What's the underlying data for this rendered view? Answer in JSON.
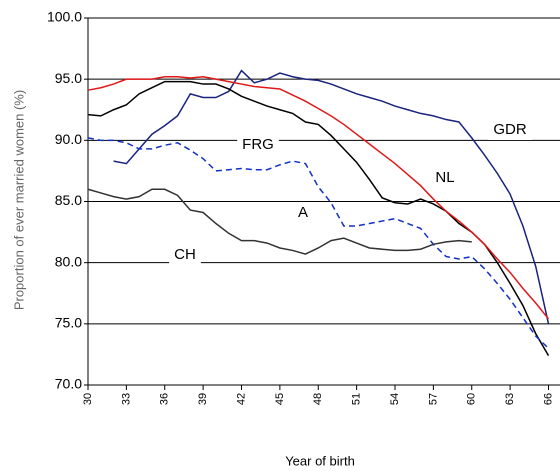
{
  "chart_data": {
    "type": "line",
    "x_label": "Year of birth",
    "y_label": "Proportion of ever married women (%)",
    "x": [
      30,
      31,
      32,
      33,
      34,
      35,
      36,
      37,
      38,
      39,
      40,
      41,
      42,
      43,
      44,
      45,
      46,
      47,
      48,
      49,
      50,
      51,
      52,
      53,
      54,
      55,
      56,
      57,
      58,
      59,
      60,
      61,
      62,
      63,
      64,
      65,
      66
    ],
    "xlim": [
      30,
      66.9
    ],
    "xticks": [
      30,
      33,
      36,
      39,
      42,
      45,
      48,
      51,
      54,
      57,
      60,
      63,
      66
    ],
    "ylim": [
      70,
      100
    ],
    "yticks": [
      {
        "value": 70,
        "label": "70.0"
      },
      {
        "value": 75,
        "label": "75.0"
      },
      {
        "value": 80,
        "label": "80.0"
      },
      {
        "value": 85,
        "label": "85.0"
      },
      {
        "value": 90,
        "label": "90.0"
      },
      {
        "value": 95,
        "label": "95.0"
      },
      {
        "value": 100,
        "label": "100.0"
      }
    ],
    "grid": true,
    "series": [
      {
        "name": "GDR",
        "color": "#1a237e",
        "dash": "solid",
        "values": [
          null,
          null,
          88.3,
          88.1,
          89.3,
          90.5,
          91.2,
          92,
          93.8,
          93.5,
          93.5,
          94,
          95.7,
          94.7,
          95,
          95.5,
          95.2,
          95,
          94.9,
          94.6,
          94.2,
          93.8,
          93.5,
          93.2,
          92.8,
          92.5,
          92.2,
          92,
          91.7,
          91.5,
          90.2,
          88.8,
          87.3,
          85.6,
          83,
          79.7,
          75
        ]
      },
      {
        "name": "FRG",
        "color": "#000000",
        "dash": "solid",
        "values": [
          92.1,
          92,
          92.5,
          92.9,
          93.8,
          94.3,
          94.8,
          94.8,
          94.8,
          94.6,
          94.6,
          94.2,
          93.6,
          93.2,
          92.8,
          92.5,
          92.2,
          91.5,
          91.3,
          90.4,
          89.3,
          88.2,
          86.8,
          85.3,
          84.9,
          84.8,
          85.2,
          84.8,
          84.2,
          83.2,
          82.5,
          81.5,
          80,
          78.3,
          76.5,
          74.2,
          72.4
        ]
      },
      {
        "name": "NL",
        "color": "#e01818",
        "dash": "solid",
        "values": [
          94.1,
          94.3,
          94.6,
          95,
          95,
          95,
          95.2,
          95.2,
          95.1,
          95.2,
          95,
          94.8,
          94.6,
          94.4,
          94.3,
          94.2,
          93.7,
          93.2,
          92.6,
          92,
          91.3,
          90.5,
          89.7,
          88.9,
          88.1,
          87.2,
          86.3,
          85.2,
          84.2,
          83.4,
          82.5,
          81.5,
          80.3,
          79.2,
          77.9,
          76.7,
          75.4
        ]
      },
      {
        "name": "A",
        "color": "#1030c8",
        "dash": "dashed",
        "values": [
          90.2,
          90,
          90,
          89.8,
          89.3,
          89.3,
          89.6,
          89.8,
          89.2,
          88.5,
          87.5,
          87.6,
          87.7,
          87.6,
          87.6,
          88,
          88.3,
          88.1,
          86.2,
          84.9,
          83,
          83,
          83.2,
          83.4,
          83.6,
          83.2,
          82.8,
          81.5,
          80.5,
          80.3,
          80.5,
          79.5,
          78.3,
          77,
          75.5,
          74,
          73
        ]
      },
      {
        "name": "CH",
        "color": "#333333",
        "dash": "solid",
        "values": [
          86,
          85.7,
          85.4,
          85.2,
          85.4,
          86,
          86,
          85.5,
          84.3,
          84.1,
          83.2,
          82.4,
          81.8,
          81.8,
          81.6,
          81.2,
          81,
          80.7,
          81.2,
          81.8,
          82,
          81.6,
          81.2,
          81.1,
          81,
          81,
          81.1,
          81.5,
          81.7,
          81.8,
          81.7,
          null,
          null,
          null,
          null,
          null,
          null
        ]
      }
    ]
  }
}
